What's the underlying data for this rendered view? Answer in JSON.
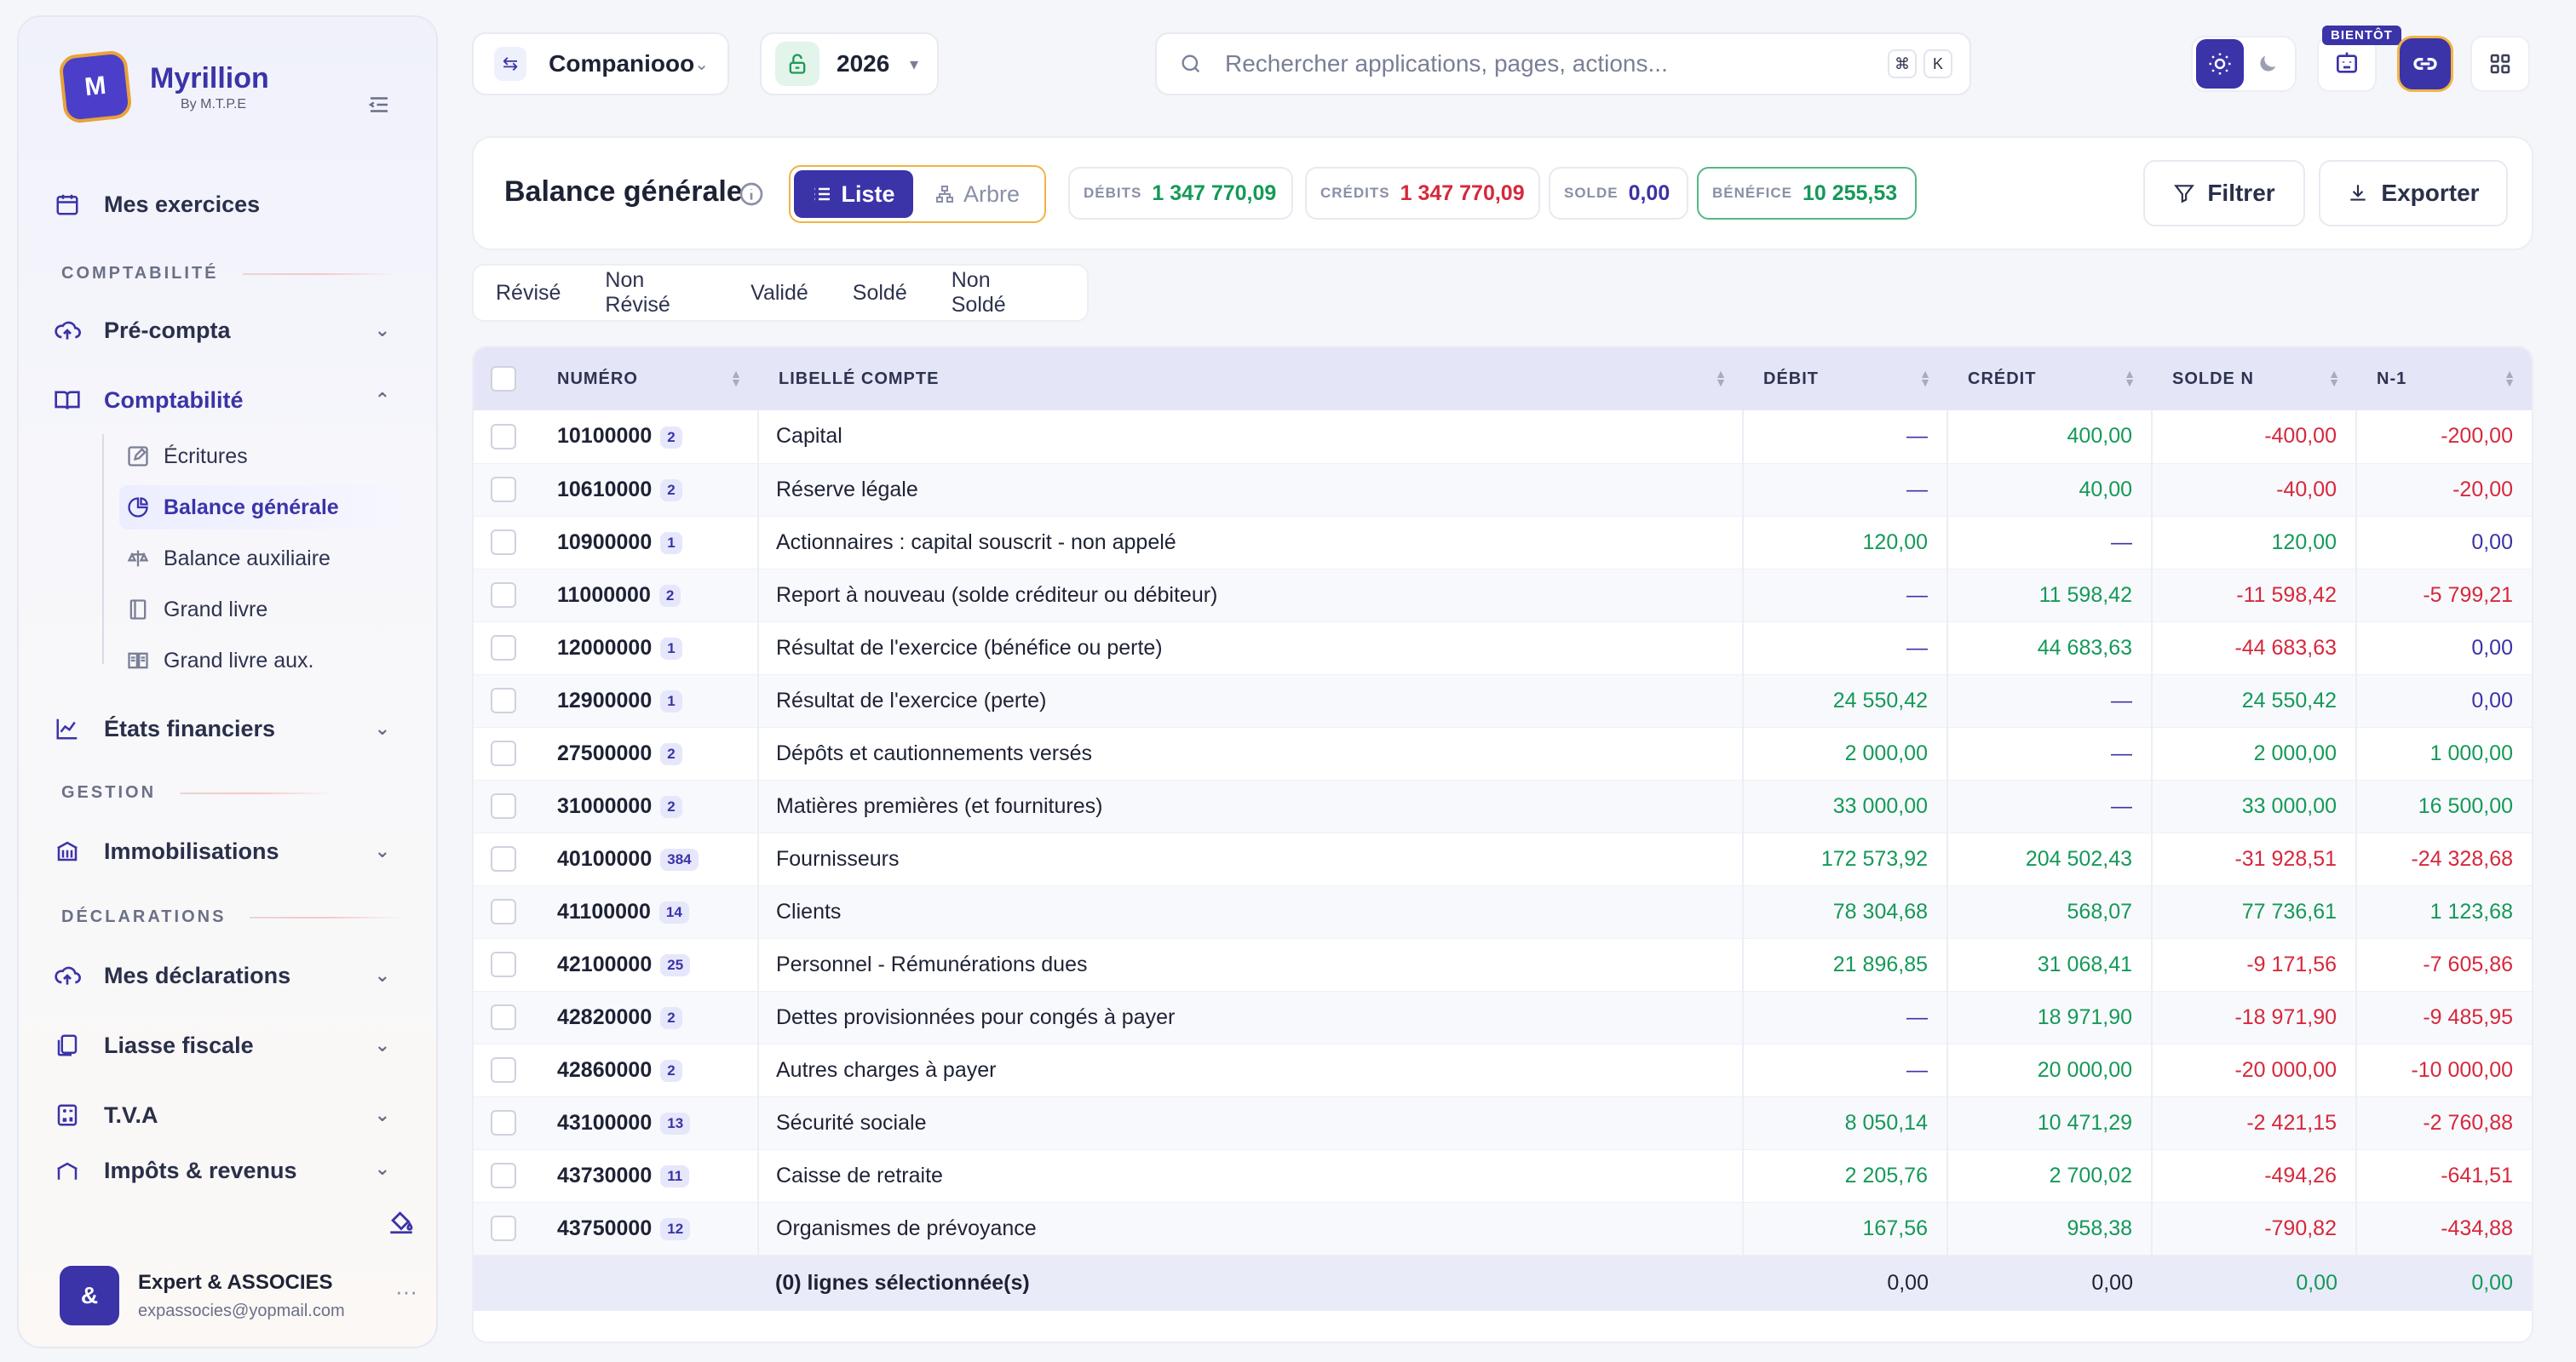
{
  "brand": {
    "name": "Myrillion",
    "sub": "By M.T.P.E",
    "logo": "M"
  },
  "sidebar": {
    "sections": {
      "comptabilite": "COMPTABILITÉ",
      "gestion": "GESTION",
      "declarations": "DÉCLARATIONS"
    },
    "items": {
      "exercices": "Mes exercices",
      "precompta": "Pré-compta",
      "comptabilite": "Comptabilité",
      "etats": "États financiers",
      "immobilisations": "Immobilisations",
      "mes_declarations": "Mes déclarations",
      "liasse": "Liasse fiscale",
      "tva": "T.V.A",
      "impots": "Impôts & revenus"
    },
    "sub_items": {
      "ecritures": "Écritures",
      "balance_generale": "Balance générale",
      "balance_auxiliaire": "Balance auxiliaire",
      "grand_livre": "Grand livre",
      "grand_livre_aux": "Grand livre aux."
    },
    "user": {
      "avatar": "&",
      "name": "Expert & ASSOCIES",
      "email": "expassocies@yopmail.com",
      "more": "···"
    }
  },
  "topbar": {
    "company": "Companiooo",
    "year": "2026",
    "search_placeholder": "Rechercher applications, pages, actions...",
    "shortcut_key1": "⌘",
    "shortcut_key2": "K",
    "soon_badge": "BIENTÔT"
  },
  "header": {
    "title": "Balance générale",
    "view_list": "Liste",
    "view_tree": "Arbre",
    "stats": {
      "debits_label": "DÉBITS",
      "debits_value": "1 347 770,09",
      "credits_label": "CRÉDITS",
      "credits_value": "1 347 770,09",
      "solde_label": "SOLDE",
      "solde_value": "0,00",
      "benefice_label": "BÉNÉFICE",
      "benefice_value": "10 255,53"
    },
    "filter_button": "Filtrer",
    "export_button": "Exporter"
  },
  "filter_tabs": [
    "Révisé",
    "Non Révisé",
    "Validé",
    "Soldé",
    "Non Soldé"
  ],
  "table": {
    "columns": [
      "NUMÉRO",
      "LIBELLÉ COMPTE",
      "DÉBIT",
      "CRÉDIT",
      "SOLDE N",
      "N-1"
    ],
    "rows": [
      {
        "num": "10100000",
        "count": "2",
        "lib": "Capital",
        "debit": "—",
        "credit": "400,00",
        "solde": "-400,00",
        "n1": "-200,00"
      },
      {
        "num": "10610000",
        "count": "2",
        "lib": "Réserve légale",
        "debit": "—",
        "credit": "40,00",
        "solde": "-40,00",
        "n1": "-20,00"
      },
      {
        "num": "10900000",
        "count": "1",
        "lib": "Actionnaires : capital souscrit - non appelé",
        "debit": "120,00",
        "credit": "—",
        "solde": "120,00",
        "n1": "0,00"
      },
      {
        "num": "11000000",
        "count": "2",
        "lib": "Report à nouveau (solde créditeur ou débiteur)",
        "debit": "—",
        "credit": "11 598,42",
        "solde": "-11 598,42",
        "n1": "-5 799,21"
      },
      {
        "num": "12000000",
        "count": "1",
        "lib": "Résultat de l'exercice (bénéfice ou perte)",
        "debit": "—",
        "credit": "44 683,63",
        "solde": "-44 683,63",
        "n1": "0,00"
      },
      {
        "num": "12900000",
        "count": "1",
        "lib": "Résultat de l'exercice (perte)",
        "debit": "24 550,42",
        "credit": "—",
        "solde": "24 550,42",
        "n1": "0,00"
      },
      {
        "num": "27500000",
        "count": "2",
        "lib": "Dépôts et cautionnements versés",
        "debit": "2 000,00",
        "credit": "—",
        "solde": "2 000,00",
        "n1": "1 000,00"
      },
      {
        "num": "31000000",
        "count": "2",
        "lib": "Matières premières (et fournitures)",
        "debit": "33 000,00",
        "credit": "—",
        "solde": "33 000,00",
        "n1": "16 500,00"
      },
      {
        "num": "40100000",
        "count": "384",
        "lib": "Fournisseurs",
        "debit": "172 573,92",
        "credit": "204 502,43",
        "solde": "-31 928,51",
        "n1": "-24 328,68"
      },
      {
        "num": "41100000",
        "count": "14",
        "lib": "Clients",
        "debit": "78 304,68",
        "credit": "568,07",
        "solde": "77 736,61",
        "n1": "1 123,68"
      },
      {
        "num": "42100000",
        "count": "25",
        "lib": "Personnel - Rémunérations dues",
        "debit": "21 896,85",
        "credit": "31 068,41",
        "solde": "-9 171,56",
        "n1": "-7 605,86"
      },
      {
        "num": "42820000",
        "count": "2",
        "lib": "Dettes provisionnées pour congés à payer",
        "debit": "—",
        "credit": "18 971,90",
        "solde": "-18 971,90",
        "n1": "-9 485,95"
      },
      {
        "num": "42860000",
        "count": "2",
        "lib": "Autres charges à payer",
        "debit": "—",
        "credit": "20 000,00",
        "solde": "-20 000,00",
        "n1": "-10 000,00"
      },
      {
        "num": "43100000",
        "count": "13",
        "lib": "Sécurité sociale",
        "debit": "8 050,14",
        "credit": "10 471,29",
        "solde": "-2 421,15",
        "n1": "-2 760,88"
      },
      {
        "num": "43730000",
        "count": "11",
        "lib": "Caisse de retraite",
        "debit": "2 205,76",
        "credit": "2 700,02",
        "solde": "-494,26",
        "n1": "-641,51"
      },
      {
        "num": "43750000",
        "count": "12",
        "lib": "Organismes de prévoyance",
        "debit": "167,56",
        "credit": "958,38",
        "solde": "-790,82",
        "n1": "-434,88"
      }
    ],
    "footer": {
      "selected": "(0) lignes sélectionnée(s)",
      "debit": "0,00",
      "credit": "0,00",
      "solde": "0,00",
      "n1": "0,00"
    }
  },
  "colors": {
    "accent": "#3b33a8",
    "positive": "#159958",
    "negative": "#d6283c",
    "highlight": "#f0b445"
  }
}
